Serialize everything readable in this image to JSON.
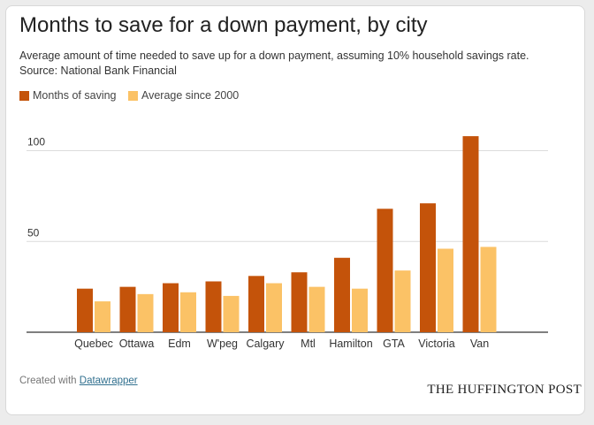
{
  "header": {
    "title": "Months to save for a down payment, by city",
    "subtitle_line1": "Average amount of time needed to save up for a down payment, assuming 10% household savings rate.",
    "subtitle_line2": "Source: National Bank Financial"
  },
  "footer": {
    "created_prefix": "Created with",
    "created_link": "Datawrapper",
    "brand": "THE HUFFINGTON POST"
  },
  "chart_data": {
    "type": "bar",
    "title": "Months to save for a down payment, by city",
    "categories": [
      "Quebec",
      "Ottawa",
      "Edm",
      "W'peg",
      "Calgary",
      "Mtl",
      "Hamilton",
      "GTA",
      "Victoria",
      "Van"
    ],
    "series": [
      {
        "name": "Months of saving",
        "color": "#c4530a",
        "values": [
          24,
          25,
          27,
          28,
          31,
          33,
          41,
          68,
          71,
          108
        ]
      },
      {
        "name": "Average since 2000",
        "color": "#fbc266",
        "values": [
          17,
          21,
          22,
          20,
          27,
          25,
          24,
          34,
          46,
          47
        ]
      }
    ],
    "yticks": [
      50,
      100
    ],
    "ylim": [
      0,
      110
    ],
    "grid": true,
    "legend": "top-left"
  }
}
